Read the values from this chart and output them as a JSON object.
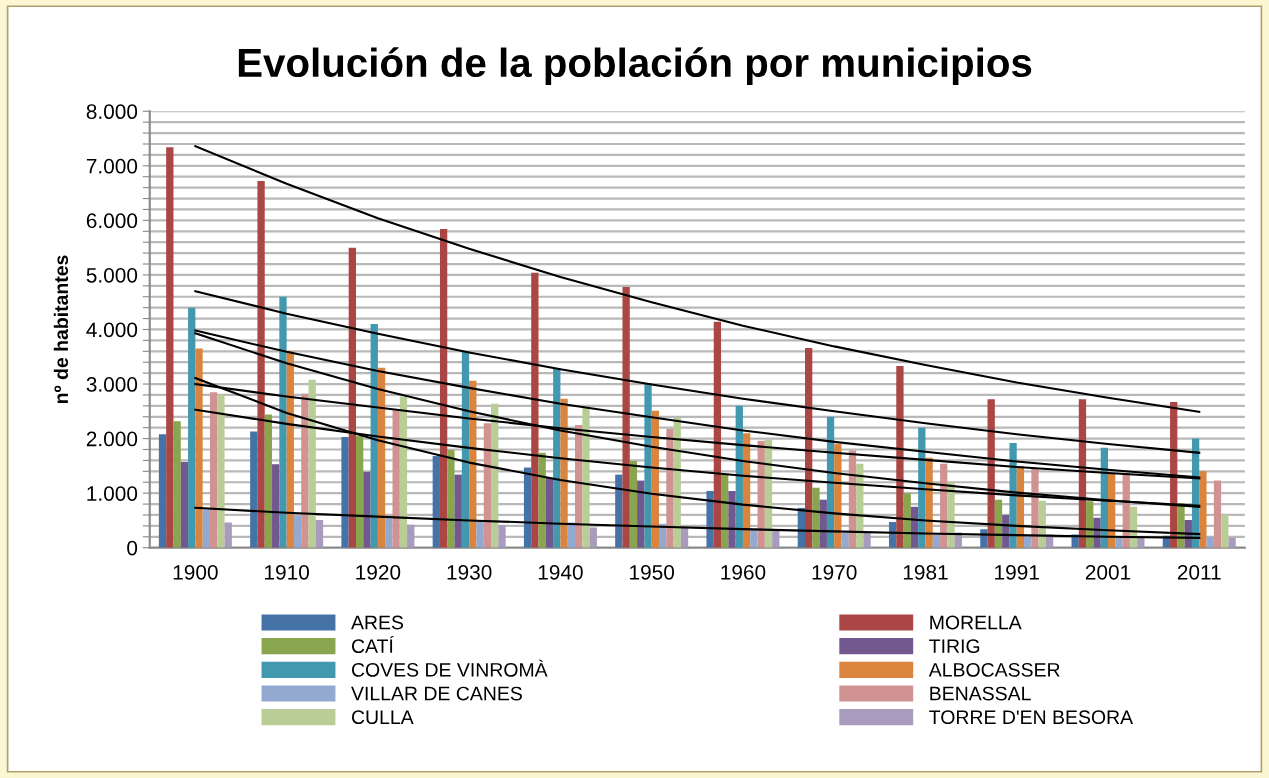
{
  "chart_data": {
    "type": "bar",
    "title": "Evolución de la población por municipios",
    "ylabel": "nº de habitantes",
    "categories": [
      "1900",
      "1910",
      "1920",
      "1930",
      "1940",
      "1950",
      "1960",
      "1970",
      "1981",
      "1991",
      "2001",
      "2011"
    ],
    "ylim": [
      0,
      8000
    ],
    "yticks": [
      {
        "value": 0,
        "label": "0"
      },
      {
        "value": 200,
        "label": null
      },
      {
        "value": 400,
        "label": null
      },
      {
        "value": 600,
        "label": null
      },
      {
        "value": 800,
        "label": null
      },
      {
        "value": 1000,
        "label": "1.000"
      },
      {
        "value": 1200,
        "label": null
      },
      {
        "value": 1400,
        "label": null
      },
      {
        "value": 1600,
        "label": null
      },
      {
        "value": 1800,
        "label": null
      },
      {
        "value": 2000,
        "label": "2.000"
      },
      {
        "value": 2200,
        "label": null
      },
      {
        "value": 2400,
        "label": null
      },
      {
        "value": 2600,
        "label": null
      },
      {
        "value": 2800,
        "label": null
      },
      {
        "value": 3000,
        "label": "3.000"
      },
      {
        "value": 3200,
        "label": null
      },
      {
        "value": 3400,
        "label": null
      },
      {
        "value": 3600,
        "label": null
      },
      {
        "value": 3800,
        "label": null
      },
      {
        "value": 4000,
        "label": "4.000"
      },
      {
        "value": 4200,
        "label": null
      },
      {
        "value": 4400,
        "label": null
      },
      {
        "value": 4600,
        "label": null
      },
      {
        "value": 4800,
        "label": null
      },
      {
        "value": 5000,
        "label": "5.000"
      },
      {
        "value": 5200,
        "label": null
      },
      {
        "value": 5400,
        "label": null
      },
      {
        "value": 5600,
        "label": null
      },
      {
        "value": 5800,
        "label": null
      },
      {
        "value": 6000,
        "label": "6.000"
      },
      {
        "value": 6200,
        "label": null
      },
      {
        "value": 6400,
        "label": null
      },
      {
        "value": 6600,
        "label": null
      },
      {
        "value": 6800,
        "label": null
      },
      {
        "value": 7000,
        "label": "7.000"
      },
      {
        "value": 7200,
        "label": null
      },
      {
        "value": 7400,
        "label": null
      },
      {
        "value": 7600,
        "label": null
      },
      {
        "value": 7800,
        "label": null
      },
      {
        "value": 8000,
        "label": "8.000"
      }
    ],
    "grid": "y",
    "legend": "bottom",
    "series": [
      {
        "name": "ARES",
        "color": "#4572a7",
        "values": [
          2080,
          2130,
          2030,
          1680,
          1470,
          1340,
          1040,
          730,
          470,
          340,
          240,
          220
        ]
      },
      {
        "name": "MORELLA",
        "color": "#aa4643",
        "values": [
          7340,
          6720,
          5500,
          5840,
          5040,
          4780,
          4140,
          3660,
          3330,
          2720,
          2720,
          2670
        ]
      },
      {
        "name": "CATÍ",
        "color": "#89a54e",
        "values": [
          2320,
          2440,
          2050,
          1790,
          1740,
          1590,
          1340,
          1100,
          1000,
          880,
          850,
          820
        ]
      },
      {
        "name": "TIRIG",
        "color": "#71588f",
        "values": [
          1570,
          1530,
          1390,
          1340,
          1280,
          1230,
          1040,
          880,
          750,
          600,
          550,
          510
        ]
      },
      {
        "name": "COVES DE VINROMÀ",
        "color": "#4198af",
        "values": [
          4400,
          4600,
          4100,
          3600,
          3280,
          3020,
          2600,
          2400,
          2200,
          1920,
          1830,
          2000
        ]
      },
      {
        "name": "ALBOCASSER",
        "color": "#db843d",
        "values": [
          3650,
          3600,
          3300,
          3060,
          2730,
          2510,
          2100,
          1900,
          1650,
          1500,
          1370,
          1400
        ]
      },
      {
        "name": "VILLAR DE CANES",
        "color": "#93a9cf",
        "values": [
          700,
          590,
          540,
          500,
          460,
          440,
          330,
          270,
          240,
          200,
          180,
          200
        ]
      },
      {
        "name": "BENASSAL",
        "color": "#d19392",
        "values": [
          2850,
          2820,
          2520,
          2280,
          2250,
          2180,
          1960,
          1780,
          1540,
          1460,
          1370,
          1230
        ]
      },
      {
        "name": "CULLA",
        "color": "#b9cd96",
        "values": [
          2800,
          3080,
          2770,
          2640,
          2560,
          2380,
          1990,
          1540,
          1210,
          860,
          750,
          600
        ]
      },
      {
        "name": "TORRE D'EN BESORA",
        "color": "#a99bbd",
        "values": [
          460,
          510,
          420,
          410,
          370,
          390,
          310,
          270,
          280,
          240,
          180,
          180
        ]
      },
      {
        "type": "line",
        "color": "#000000",
        "values": [
          7360,
          6670,
          6040,
          5480,
          4960,
          4500,
          4070,
          3690,
          3350,
          3030,
          2750,
          2490
        ]
      },
      {
        "type": "line",
        "color": "#000000",
        "values": [
          4700,
          4290,
          3920,
          3580,
          3270,
          2990,
          2730,
          2500,
          2280,
          2080,
          1900,
          1740
        ]
      },
      {
        "type": "line",
        "color": "#000000",
        "values": [
          3980,
          3590,
          3240,
          2930,
          2640,
          2390,
          2150,
          1940,
          1760,
          1580,
          1430,
          1290
        ]
      },
      {
        "type": "line",
        "color": "#000000",
        "values": [
          3930,
          3380,
          2910,
          2500,
          2150,
          1850,
          1590,
          1370,
          1180,
          1010,
          870,
          750
        ]
      },
      {
        "type": "line",
        "color": "#000000",
        "values": [
          3000,
          2770,
          2570,
          2370,
          2190,
          2030,
          1880,
          1740,
          1610,
          1480,
          1370,
          1270
        ]
      },
      {
        "type": "line",
        "color": "#000000",
        "values": [
          2530,
          2270,
          2040,
          1830,
          1640,
          1470,
          1320,
          1190,
          1070,
          960,
          860,
          770
        ]
      },
      {
        "type": "line",
        "color": "#000000",
        "values": [
          3110,
          2470,
          1970,
          1560,
          1240,
          990,
          790,
          630,
          500,
          400,
          320,
          250
        ]
      },
      {
        "type": "line",
        "color": "#000000",
        "values": [
          730,
          640,
          570,
          500,
          440,
          390,
          340,
          300,
          260,
          230,
          200,
          180
        ]
      }
    ]
  }
}
